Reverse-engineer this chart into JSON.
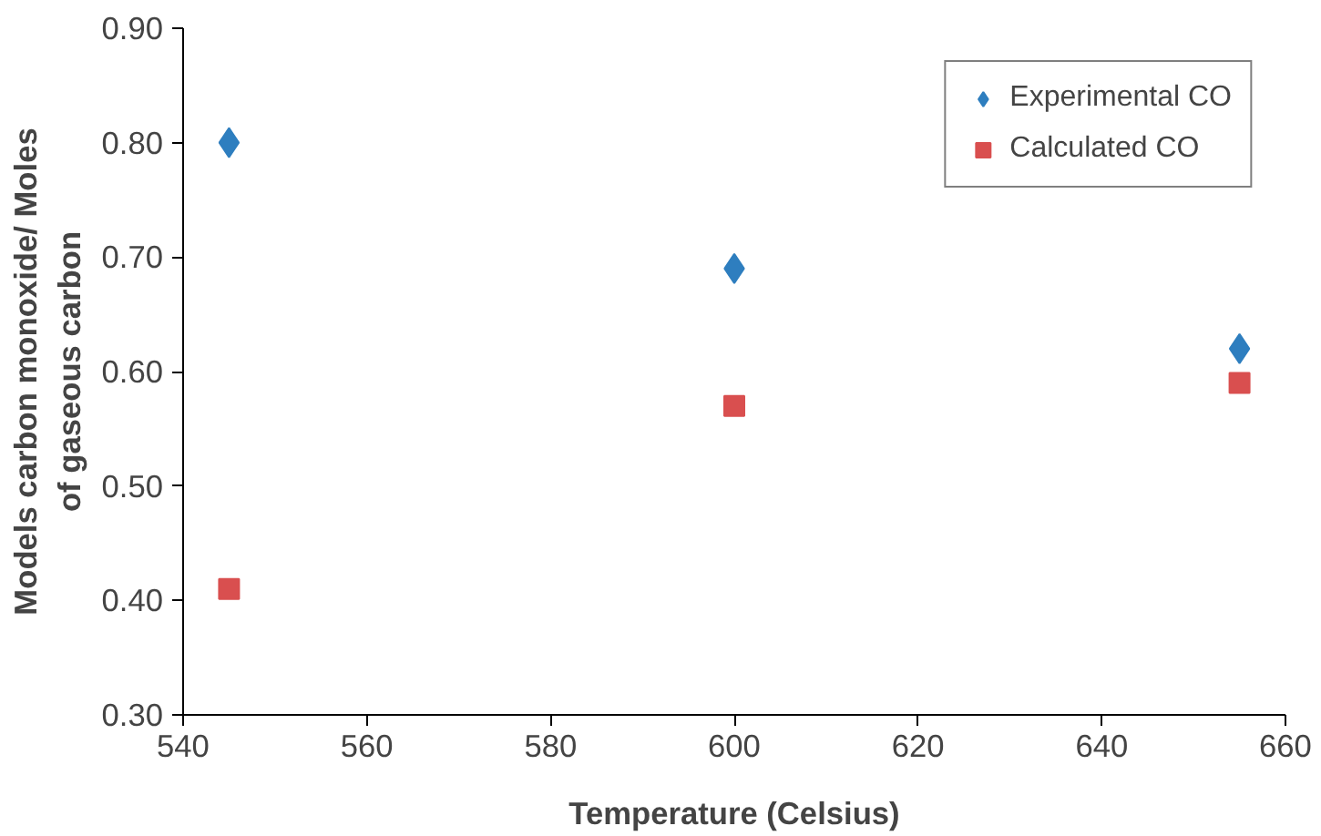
{
  "chart_data": {
    "type": "scatter",
    "xlabel": "Temperature (Celsius)",
    "ylabel": "Models carbon monoxide/ Moles\nof gaseous carbon",
    "x": [
      545,
      600,
      655
    ],
    "series": [
      {
        "name": "Experimental CO",
        "color": "#2e7ebf",
        "marker": "diamond",
        "values": [
          0.8,
          0.69,
          0.62
        ]
      },
      {
        "name": "Calculated CO",
        "color": "#d94f4f",
        "marker": "square",
        "values": [
          0.41,
          0.57,
          0.59
        ]
      }
    ],
    "xlim": [
      540,
      660
    ],
    "xticks": [
      540,
      560,
      580,
      600,
      620,
      640,
      660
    ],
    "ylim": [
      0.3,
      0.9
    ],
    "yticks": [
      {
        "value": 0.3,
        "label": "0.30"
      },
      {
        "value": 0.4,
        "label": "0.40"
      },
      {
        "value": 0.5,
        "label": "0.50"
      },
      {
        "value": 0.6,
        "label": "0.60"
      },
      {
        "value": 0.7,
        "label": "0.70"
      },
      {
        "value": 0.8,
        "label": "0.80"
      },
      {
        "value": 0.9,
        "label": "0.90"
      }
    ],
    "grid": false,
    "legend": "top right"
  }
}
